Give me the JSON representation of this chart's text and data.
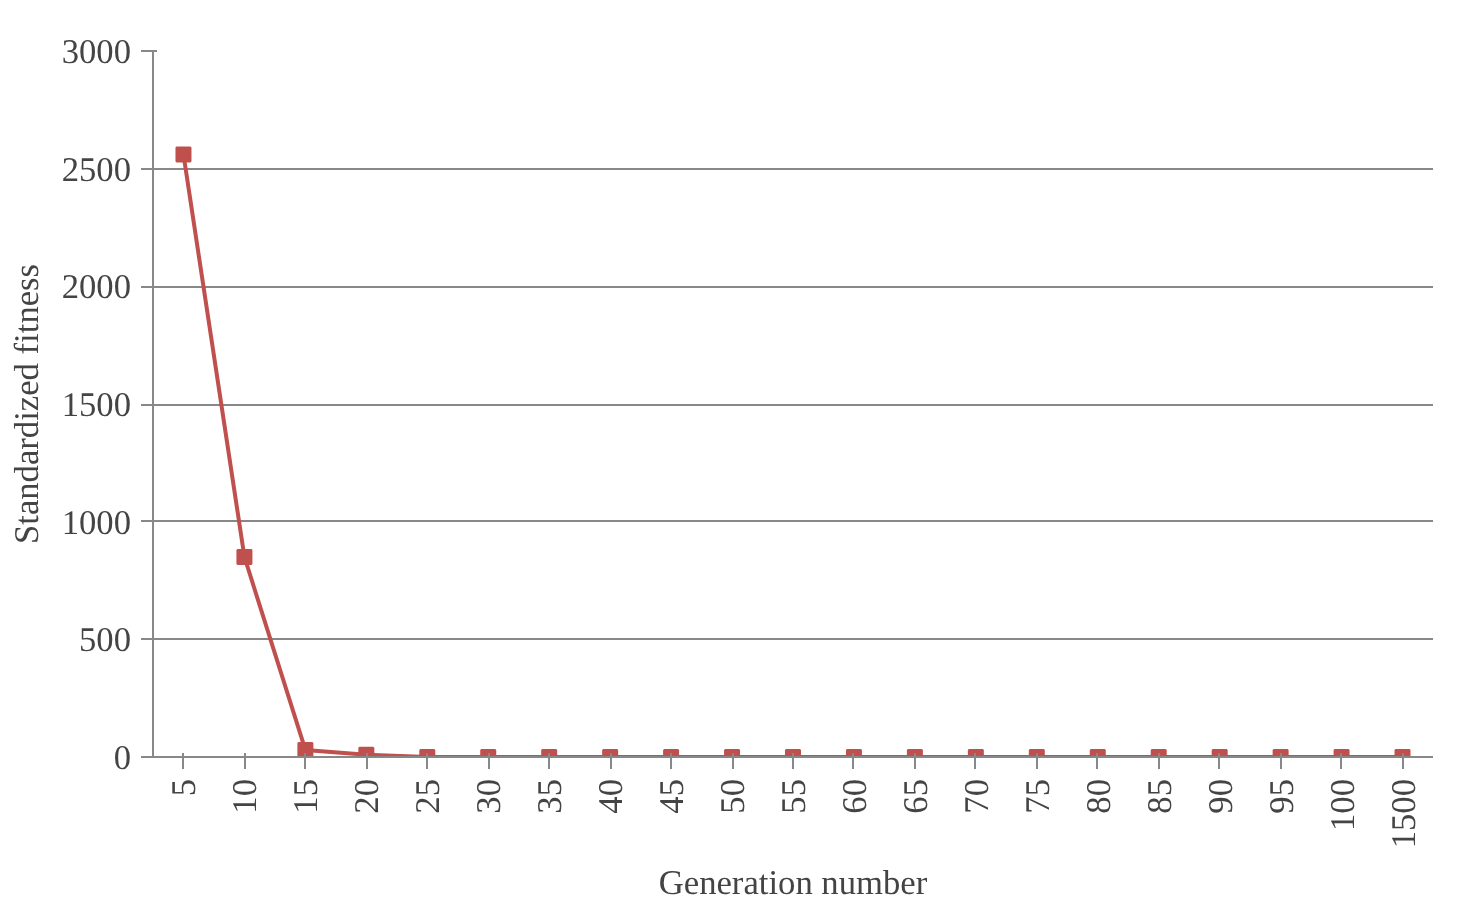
{
  "chart_data": {
    "type": "line",
    "xlabel": "Generation number",
    "ylabel": "Standardized fitness",
    "categories": [
      "5",
      "10",
      "15",
      "20",
      "25",
      "30",
      "35",
      "40",
      "45",
      "50",
      "55",
      "60",
      "65",
      "70",
      "75",
      "80",
      "85",
      "90",
      "95",
      "100",
      "1500"
    ],
    "series": [
      {
        "color": "#c0504d",
        "values": [
          2560,
          850,
          30,
          10,
          0,
          0,
          0,
          0,
          0,
          0,
          0,
          0,
          0,
          0,
          0,
          0,
          0,
          0,
          0,
          0,
          0
        ]
      }
    ],
    "ylim": [
      0,
      3000
    ],
    "yticks": [
      0,
      500,
      1000,
      1500,
      2000,
      2500,
      3000
    ],
    "grid": "y",
    "marker": "square",
    "line_style": "solid"
  }
}
